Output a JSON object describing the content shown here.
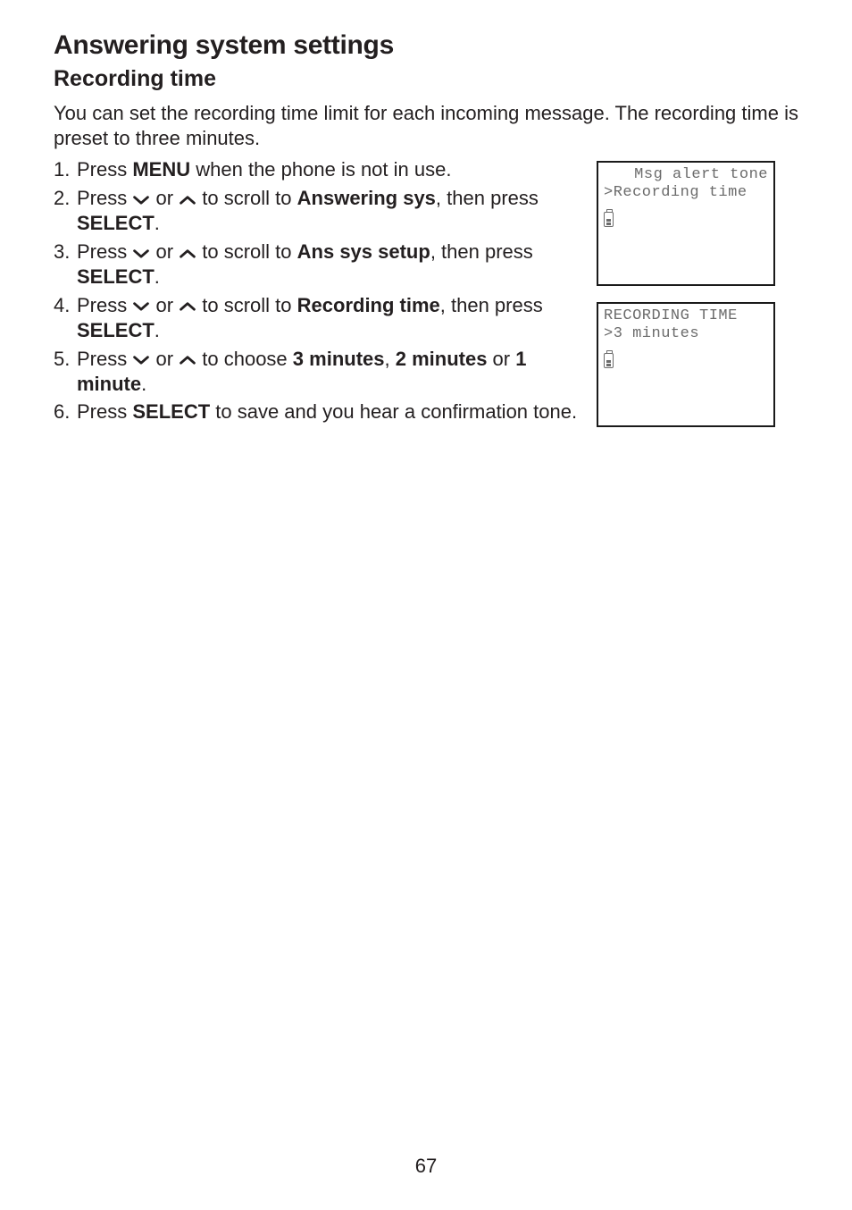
{
  "heading": "Answering system settings",
  "subheading": "Recording time",
  "intro": "You can set the recording time limit for each incoming message. The recording time is preset to three minutes.",
  "steps": [
    {
      "num": "1.",
      "parts": [
        "Press ",
        {
          "b": "MENU"
        },
        " when the phone is not in use."
      ]
    },
    {
      "num": "2.",
      "parts": [
        "Press ",
        {
          "chev": "down"
        },
        " or ",
        {
          "chev": "up"
        },
        " to scroll to ",
        {
          "b": "Answering sys"
        },
        ", then press ",
        {
          "b": "SELECT"
        },
        "."
      ]
    },
    {
      "num": "3.",
      "parts": [
        "Press ",
        {
          "chev": "down"
        },
        " or ",
        {
          "chev": "up"
        },
        " to scroll to ",
        {
          "b": "Ans sys setup"
        },
        ", then press ",
        {
          "b": "SELECT"
        },
        "."
      ]
    },
    {
      "num": "4.",
      "parts": [
        "Press ",
        {
          "chev": "down"
        },
        " or ",
        {
          "chev": "up"
        },
        " to scroll to ",
        {
          "b": "Recording time"
        },
        ", then press ",
        {
          "b": "SELECT"
        },
        "."
      ]
    },
    {
      "num": "5.",
      "parts": [
        "Press ",
        {
          "chev": "down"
        },
        " or ",
        {
          "chev": "up"
        },
        " to choose ",
        {
          "b": "3 minutes"
        },
        ", ",
        {
          "b": "2 minutes"
        },
        " or ",
        {
          "b": "1 minute"
        },
        "."
      ]
    },
    {
      "num": "6.",
      "parts": [
        "Press ",
        {
          "b": "SELECT"
        },
        " to save and you hear a confirmation tone."
      ]
    }
  ],
  "screen1": {
    "line1": " Msg alert tone",
    "line2": ">Recording time"
  },
  "screen2": {
    "line1": "RECORDING TIME",
    "line2": ">3 minutes"
  },
  "pageNumber": "67",
  "chevronColor": "#231f20"
}
